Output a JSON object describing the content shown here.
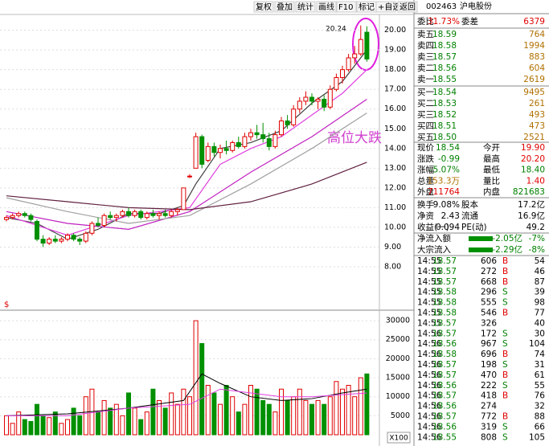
{
  "toolbar": [
    "复权",
    "叠加",
    "统计",
    "画线",
    "F10",
    "标记",
    "+自选",
    "返回"
  ],
  "chart_data": [
    {
      "type": "candlestick",
      "annotation": "高位大跌",
      "max_label": "20.24",
      "up_color": "#e00000",
      "down_color": "#009000",
      "open": [
        10.4,
        10.5,
        10.6,
        10.7,
        10.6,
        10.3,
        9.4,
        9.2,
        9.4,
        9.3,
        9.4,
        9.6,
        9.4,
        9.3,
        9.7,
        10.2,
        10.1,
        10.6,
        10.5,
        10.6,
        10.8,
        10.6,
        10.8,
        10.5,
        10.7,
        10.6,
        10.7,
        10.6,
        10.8,
        10.9,
        12.6,
        13.0,
        14.6,
        13.4,
        14.1,
        13.8,
        14.0,
        13.9,
        14.3,
        14.1,
        14.6,
        14.8,
        14.7,
        14.5,
        14.1,
        14.7,
        15.4,
        15.2,
        16.0,
        16.4,
        16.6,
        16.4,
        16.5,
        16.1,
        17.0,
        17.6,
        18.0,
        18.6,
        18.8,
        19.9
      ],
      "high": [
        10.6,
        10.7,
        10.8,
        10.8,
        10.7,
        10.4,
        9.6,
        9.5,
        9.6,
        9.5,
        9.7,
        9.7,
        9.5,
        9.8,
        10.3,
        10.5,
        10.7,
        10.8,
        10.7,
        10.9,
        11.0,
        10.9,
        10.9,
        10.8,
        10.9,
        10.8,
        10.9,
        10.9,
        11.0,
        12.0,
        12.7,
        14.8,
        14.7,
        14.3,
        14.3,
        14.2,
        14.4,
        14.4,
        14.6,
        14.8,
        15.0,
        15.2,
        15.3,
        14.8,
        14.9,
        15.6,
        15.7,
        16.2,
        16.6,
        16.9,
        16.8,
        16.6,
        16.7,
        17.2,
        17.8,
        18.2,
        18.8,
        19.2,
        20.24,
        20.2
      ],
      "low": [
        10.3,
        10.4,
        10.5,
        10.5,
        10.3,
        9.3,
        9.0,
        9.1,
        9.2,
        9.2,
        9.3,
        9.3,
        9.1,
        9.2,
        9.6,
        10.0,
        10.0,
        10.4,
        10.3,
        10.5,
        10.5,
        10.5,
        10.4,
        10.4,
        10.5,
        10.4,
        10.5,
        10.5,
        10.6,
        10.9,
        12.5,
        13.0,
        13.0,
        13.3,
        13.6,
        13.5,
        13.7,
        13.8,
        14.0,
        14.0,
        14.4,
        14.5,
        14.3,
        13.9,
        14.0,
        14.6,
        15.0,
        15.1,
        15.8,
        16.2,
        16.2,
        16.0,
        15.9,
        16.0,
        16.9,
        17.3,
        17.9,
        18.3,
        18.7,
        18.4
      ],
      "close": [
        10.5,
        10.6,
        10.7,
        10.6,
        10.4,
        9.4,
        9.2,
        9.4,
        9.3,
        9.4,
        9.6,
        9.4,
        9.3,
        9.7,
        10.2,
        10.1,
        10.6,
        10.5,
        10.6,
        10.8,
        10.6,
        10.8,
        10.5,
        10.7,
        10.6,
        10.7,
        10.6,
        10.8,
        10.9,
        12.0,
        12.6,
        14.6,
        13.2,
        14.1,
        13.8,
        14.0,
        13.9,
        14.3,
        14.1,
        14.6,
        14.8,
        14.7,
        14.5,
        14.1,
        14.7,
        15.4,
        15.2,
        16.0,
        16.4,
        16.6,
        16.4,
        16.5,
        16.1,
        17.0,
        17.6,
        18.0,
        18.6,
        18.8,
        19.53,
        18.54
      ],
      "ma_lines": [
        {
          "color": "#404040",
          "x": [
            0,
            5,
            10,
            15,
            20,
            25,
            29,
            31,
            35,
            40,
            45,
            50,
            55,
            59
          ],
          "values": [
            10.5,
            10.2,
            9.4,
            9.9,
            10.7,
            10.7,
            11.1,
            12.2,
            14.0,
            14.3,
            14.9,
            16.3,
            17.4,
            19.0
          ]
        },
        {
          "color": "#e040e0",
          "x": [
            0,
            10,
            20,
            30,
            35,
            40,
            45,
            50,
            55,
            59
          ],
          "values": [
            10.6,
            9.6,
            10.6,
            11.0,
            13.2,
            14.0,
            14.6,
            15.7,
            16.8,
            18.0
          ]
        },
        {
          "color": "#c020c0",
          "x": [
            0,
            10,
            20,
            30,
            40,
            50,
            59
          ],
          "values": [
            10.8,
            10.2,
            9.9,
            10.8,
            12.8,
            14.6,
            16.5
          ]
        },
        {
          "color": "#a0a0a0",
          "x": [
            0,
            10,
            20,
            30,
            40,
            50,
            59
          ],
          "values": [
            11.5,
            10.8,
            10.2,
            10.6,
            12.2,
            14.0,
            15.8
          ]
        },
        {
          "color": "#602040",
          "x": [
            0,
            10,
            20,
            30,
            40,
            50,
            59
          ],
          "values": [
            11.6,
            11.3,
            11.0,
            10.9,
            11.3,
            12.2,
            13.3
          ]
        }
      ],
      "ylim": [
        6.45,
        20.8
      ],
      "yticks": [
        {
          "value": 8,
          "label": "8.00"
        },
        {
          "value": 9,
          "label": "9.00"
        },
        {
          "value": 10,
          "label": "10.00"
        },
        {
          "value": 11,
          "label": "11.00"
        },
        {
          "value": 12,
          "label": "12.00"
        },
        {
          "value": 13,
          "label": "13.00"
        },
        {
          "value": 14,
          "label": "14.00"
        },
        {
          "value": 15,
          "label": "15.00"
        },
        {
          "value": 16,
          "label": "16.00"
        },
        {
          "value": 17,
          "label": "17.00"
        },
        {
          "value": 18,
          "label": "18.00"
        },
        {
          "value": 19,
          "label": "19.00"
        },
        {
          "value": 20,
          "label": "20.00"
        }
      ]
    },
    {
      "type": "bar",
      "unit_label": "X100",
      "values": [
        5000,
        3000,
        6000,
        4000,
        3500,
        8000,
        5000,
        4500,
        6000,
        3000,
        4000,
        7000,
        5000,
        10000,
        12000,
        6000,
        9000,
        7000,
        8000,
        5000,
        11000,
        7000,
        4000,
        6000,
        12000,
        9000,
        7000,
        11000,
        8000,
        12000,
        10000,
        30000,
        24000,
        13000,
        11000,
        8000,
        13000,
        10000,
        6000,
        8000,
        13000,
        12000,
        9000,
        8000,
        6000,
        12000,
        9000,
        10000,
        12000,
        9000,
        8000,
        9000,
        8000,
        10000,
        14000,
        12000,
        13000,
        10000,
        15000,
        16000
      ],
      "ma_lines": [
        {
          "color": "#000000",
          "x": [
            0,
            10,
            20,
            29,
            32,
            35,
            40,
            45,
            50,
            55,
            59
          ],
          "values": [
            5000,
            5500,
            7000,
            9000,
            16000,
            13500,
            10000,
            9000,
            9500,
            11000,
            12000
          ]
        },
        {
          "color": "#e040e0",
          "x": [
            0,
            10,
            20,
            30,
            35,
            40,
            45,
            50,
            59
          ],
          "values": [
            5000,
            5000,
            7000,
            8000,
            12000,
            11000,
            10000,
            10000,
            11000
          ]
        }
      ],
      "ylim": [
        0,
        31500
      ],
      "yticks": [
        5000,
        10000,
        15000,
        20000,
        25000,
        30000
      ]
    }
  ],
  "quote": {
    "code": "002463",
    "name": "沪电股份",
    "ratio": [
      "委比",
      "31.73%",
      "委差",
      "6379"
    ],
    "asks": [
      [
        "卖五",
        "18.59",
        "764"
      ],
      [
        "卖四",
        "18.58",
        "1994"
      ],
      [
        "卖三",
        "18.57",
        "883"
      ],
      [
        "卖二",
        "18.56",
        "604"
      ],
      [
        "卖一",
        "18.55",
        "2619"
      ]
    ],
    "bids": [
      [
        "买一",
        "18.54",
        "9495"
      ],
      [
        "买二",
        "18.53",
        "261"
      ],
      [
        "买三",
        "18.52",
        "493"
      ],
      [
        "买四",
        "18.51",
        "473"
      ],
      [
        "买五",
        "18.50",
        "2521"
      ]
    ],
    "stats": [
      [
        "现价",
        "18.54",
        "今开",
        "19.90"
      ],
      [
        "涨跌",
        "-0.99",
        "最高",
        "20.20"
      ],
      [
        "涨幅",
        "-5.07%",
        "最低",
        "18.40"
      ],
      [
        "总量",
        "153.3万",
        "量比",
        "1.40"
      ],
      [
        "外盘",
        "711764",
        "内盘",
        "821683"
      ]
    ],
    "stats2": [
      [
        "换手",
        "9.08%",
        "股本",
        "17.2亿"
      ],
      [
        "净资",
        "2.43",
        "流通",
        "16.9亿"
      ],
      [
        "收益(一)",
        "0.094",
        "PE(动)",
        "49.2"
      ]
    ],
    "flows": [
      [
        "净流入额",
        "-2.05亿",
        "-7%"
      ],
      [
        "大宗流入",
        "-2.29亿",
        "-8%"
      ]
    ],
    "trades": [
      [
        "14:55",
        "18.57",
        "606",
        "B",
        "54"
      ],
      [
        "14:55",
        "18.57",
        "272",
        "B",
        "46"
      ],
      [
        "14:55",
        "18.57",
        "668",
        "B",
        "87"
      ],
      [
        "14:55",
        "18.58",
        "296",
        "S",
        "39"
      ],
      [
        "14:55",
        "18.58",
        "555",
        "S",
        "98"
      ],
      [
        "14:55",
        "18.58",
        "546",
        "B",
        "77"
      ],
      [
        "14:55",
        "18.57",
        "326",
        null,
        "40"
      ],
      [
        "14:56",
        "18.57",
        "172",
        "S",
        "30"
      ],
      [
        "14:56",
        "18.56",
        "967",
        "S",
        "104"
      ],
      [
        "14:56",
        "18.58",
        "696",
        "B",
        "74"
      ],
      [
        "14:56",
        "18.57",
        "198",
        "S",
        "31"
      ],
      [
        "14:56",
        "18.57",
        "470",
        "B",
        "61"
      ],
      [
        "14:56",
        "18.56",
        "222",
        "S",
        "55"
      ],
      [
        "14:56",
        "18.57",
        "418",
        "B",
        "76"
      ],
      [
        "14:56",
        "18.56",
        "274",
        null,
        "32"
      ],
      [
        "14:56",
        "18.57",
        "772",
        "B",
        "88"
      ],
      [
        "14:56",
        "18.56",
        "319",
        "S",
        "66"
      ],
      [
        "14:56",
        "18.55",
        "808",
        "S",
        "105"
      ]
    ]
  }
}
